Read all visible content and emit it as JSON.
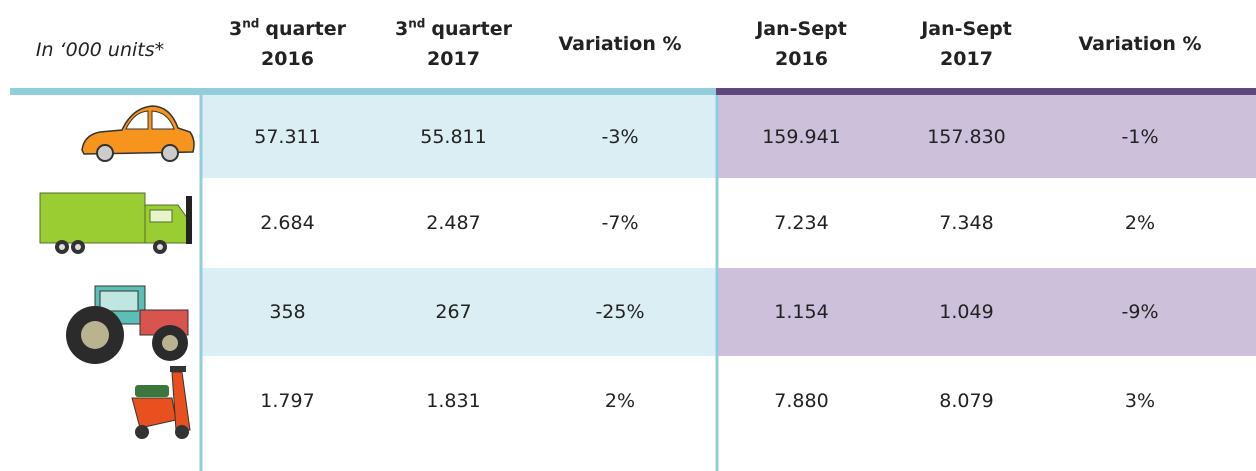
{
  "table": {
    "unit_note": "In ‘000 units*",
    "columns": [
      {
        "number": "3",
        "superscript": "nd",
        "label": "quarter",
        "line2": "2016"
      },
      {
        "number": "3",
        "superscript": "nd",
        "label": "quarter",
        "line2": "2017"
      },
      {
        "label": "Variation %"
      },
      {
        "label": "Jan-Sept",
        "line2": "2016"
      },
      {
        "label": "Jan-Sept",
        "line2": "2017"
      },
      {
        "label": "Variation %"
      }
    ],
    "rows": [
      [
        "57.311",
        "55.811",
        "-3%",
        "159.941",
        "157.830",
        "-1%"
      ],
      [
        "2.684",
        "2.487",
        "-7%",
        "7.234",
        "7.348",
        "2%"
      ],
      [
        "358",
        "267",
        "-25%",
        "1.154",
        "1.049",
        "-9%"
      ],
      [
        "1.797",
        "1.831",
        "2%",
        "7.880",
        "8.079",
        "3%"
      ]
    ]
  }
}
